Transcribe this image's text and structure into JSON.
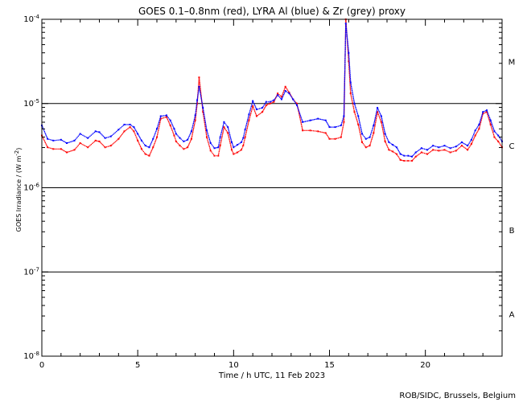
{
  "chart_data": {
    "type": "scatter",
    "title": "GOES 0.1–0.8nm (red), LYRA Al (blue) & Zr (grey) proxy",
    "xlabel": "Time / h UTC, 11 Feb 2023",
    "ylabel_prefix": "GOES Irradiance / (W m",
    "ylabel_sup": "-2",
    "ylabel_suffix": ")",
    "xlim": [
      0,
      24
    ],
    "ylim_log10": [
      -8,
      -4
    ],
    "log_y": true,
    "x_ticks": [
      0,
      5,
      10,
      15,
      20
    ],
    "y_ticks": [
      {
        "base": "10",
        "exp": "-8",
        "value": -8
      },
      {
        "base": "10",
        "exp": "-7",
        "value": -7
      },
      {
        "base": "10",
        "exp": "-6",
        "value": -6
      },
      {
        "base": "10",
        "exp": "-5",
        "value": -5
      },
      {
        "base": "10",
        "exp": "-4",
        "value": -4
      }
    ],
    "class_lines": [
      -7,
      -6,
      -5
    ],
    "flare_classes": [
      {
        "label": "A",
        "value": -7.5
      },
      {
        "label": "B",
        "value": -6.5
      },
      {
        "label": "C",
        "value": -5.5
      },
      {
        "label": "M",
        "value": -4.5
      }
    ],
    "colors": {
      "goes": "#ff0000",
      "lyra_al": "#0000ff",
      "lyra_zr": "#808080"
    },
    "series": [
      {
        "name": "GOES 0.1–0.8nm",
        "color": "#ff0000",
        "x": [
          0,
          0.3,
          0.6,
          1,
          1.3,
          1.7,
          2,
          2.4,
          2.8,
          3,
          3.3,
          3.6,
          4,
          4.3,
          4.6,
          4.8,
          5,
          5.2,
          5.4,
          5.6,
          5.8,
          6,
          6.2,
          6.5,
          6.7,
          6.9,
          7,
          7.2,
          7.4,
          7.6,
          7.8,
          8,
          8.1,
          8.2,
          8.4,
          8.6,
          8.8,
          9,
          9.2,
          9.3,
          9.5,
          9.7,
          9.9,
          10,
          10.2,
          10.4,
          10.5,
          10.6,
          10.8,
          11,
          11.2,
          11.5,
          11.7,
          11.9,
          12.1,
          12.3,
          12.5,
          12.7,
          12.9,
          13.1,
          13.3,
          13.6,
          14,
          14.4,
          14.8,
          15,
          15.3,
          15.6,
          15.75,
          15.85,
          16,
          16.1,
          16.3,
          16.5,
          16.7,
          16.9,
          17.1,
          17.3,
          17.5,
          17.7,
          17.9,
          18.1,
          18.3,
          18.5,
          18.7,
          18.9,
          19.1,
          19.3,
          19.5,
          19.8,
          20.1,
          20.4,
          20.7,
          21,
          21.3,
          21.6,
          21.9,
          22.2,
          22.4,
          22.6,
          22.8,
          23,
          23.2,
          23.4,
          23.6,
          23.8,
          24
        ],
        "y": [
          -5.38,
          -5.52,
          -5.54,
          -5.54,
          -5.58,
          -5.55,
          -5.47,
          -5.52,
          -5.44,
          -5.45,
          -5.52,
          -5.5,
          -5.42,
          -5.33,
          -5.28,
          -5.33,
          -5.44,
          -5.54,
          -5.6,
          -5.62,
          -5.52,
          -5.4,
          -5.18,
          -5.16,
          -5.26,
          -5.38,
          -5.45,
          -5.5,
          -5.54,
          -5.52,
          -5.42,
          -5.2,
          -5.0,
          -4.69,
          -5.1,
          -5.4,
          -5.56,
          -5.62,
          -5.62,
          -5.5,
          -5.28,
          -5.35,
          -5.55,
          -5.6,
          -5.58,
          -5.55,
          -5.5,
          -5.4,
          -5.2,
          -5.03,
          -5.15,
          -5.1,
          -5.02,
          -5.0,
          -4.98,
          -4.88,
          -4.92,
          -4.8,
          -4.87,
          -4.95,
          -5.0,
          -5.32,
          -5.32,
          -5.33,
          -5.35,
          -5.42,
          -5.42,
          -5.4,
          -5.22,
          -4.0,
          -4.5,
          -4.88,
          -5.1,
          -5.25,
          -5.46,
          -5.52,
          -5.5,
          -5.35,
          -5.1,
          -5.22,
          -5.45,
          -5.55,
          -5.57,
          -5.6,
          -5.67,
          -5.68,
          -5.68,
          -5.68,
          -5.63,
          -5.58,
          -5.6,
          -5.55,
          -5.56,
          -5.55,
          -5.58,
          -5.56,
          -5.5,
          -5.55,
          -5.48,
          -5.38,
          -5.3,
          -5.12,
          -5.1,
          -5.25,
          -5.4,
          -5.45,
          -5.52
        ]
      },
      {
        "name": "LYRA Al",
        "color": "#0000ff",
        "x": [
          0,
          0.3,
          0.6,
          1,
          1.3,
          1.7,
          2,
          2.4,
          2.8,
          3,
          3.3,
          3.6,
          4,
          4.3,
          4.6,
          4.8,
          5,
          5.2,
          5.4,
          5.6,
          5.8,
          6,
          6.2,
          6.5,
          6.7,
          6.9,
          7,
          7.2,
          7.4,
          7.6,
          7.8,
          8,
          8.1,
          8.2,
          8.4,
          8.6,
          8.8,
          9,
          9.2,
          9.3,
          9.5,
          9.7,
          9.9,
          10,
          10.2,
          10.4,
          10.5,
          10.6,
          10.8,
          11,
          11.2,
          11.5,
          11.7,
          11.9,
          12.1,
          12.3,
          12.5,
          12.7,
          12.9,
          13.1,
          13.3,
          13.6,
          14,
          14.4,
          14.8,
          15,
          15.3,
          15.6,
          15.75,
          15.85,
          16,
          16.1,
          16.3,
          16.5,
          16.7,
          16.9,
          17.1,
          17.3,
          17.5,
          17.7,
          17.9,
          18.1,
          18.3,
          18.5,
          18.7,
          18.9,
          19.1,
          19.3,
          19.5,
          19.8,
          20.1,
          20.4,
          20.7,
          21,
          21.3,
          21.6,
          21.9,
          22.2,
          22.4,
          22.6,
          22.8,
          23,
          23.2,
          23.4,
          23.6,
          23.8,
          24
        ],
        "y": [
          -5.26,
          -5.42,
          -5.44,
          -5.43,
          -5.47,
          -5.44,
          -5.36,
          -5.41,
          -5.33,
          -5.34,
          -5.41,
          -5.39,
          -5.31,
          -5.25,
          -5.25,
          -5.28,
          -5.36,
          -5.44,
          -5.5,
          -5.52,
          -5.42,
          -5.3,
          -5.15,
          -5.14,
          -5.2,
          -5.3,
          -5.36,
          -5.41,
          -5.45,
          -5.43,
          -5.33,
          -5.14,
          -4.96,
          -4.8,
          -5.05,
          -5.32,
          -5.47,
          -5.53,
          -5.52,
          -5.4,
          -5.22,
          -5.28,
          -5.46,
          -5.52,
          -5.49,
          -5.46,
          -5.41,
          -5.31,
          -5.13,
          -4.97,
          -5.07,
          -5.05,
          -4.98,
          -4.98,
          -4.96,
          -4.9,
          -4.95,
          -4.85,
          -4.88,
          -4.95,
          -5.02,
          -5.22,
          -5.2,
          -5.18,
          -5.2,
          -5.28,
          -5.28,
          -5.26,
          -5.15,
          -4.05,
          -4.4,
          -4.75,
          -5.0,
          -5.15,
          -5.36,
          -5.42,
          -5.4,
          -5.26,
          -5.05,
          -5.15,
          -5.36,
          -5.46,
          -5.49,
          -5.52,
          -5.6,
          -5.62,
          -5.62,
          -5.63,
          -5.58,
          -5.53,
          -5.55,
          -5.5,
          -5.52,
          -5.5,
          -5.53,
          -5.51,
          -5.46,
          -5.5,
          -5.43,
          -5.32,
          -5.25,
          -5.1,
          -5.08,
          -5.2,
          -5.33,
          -5.38,
          -5.45
        ]
      }
    ]
  },
  "footer": {
    "credit": "ROB/SIDC, Brussels, Belgium"
  }
}
